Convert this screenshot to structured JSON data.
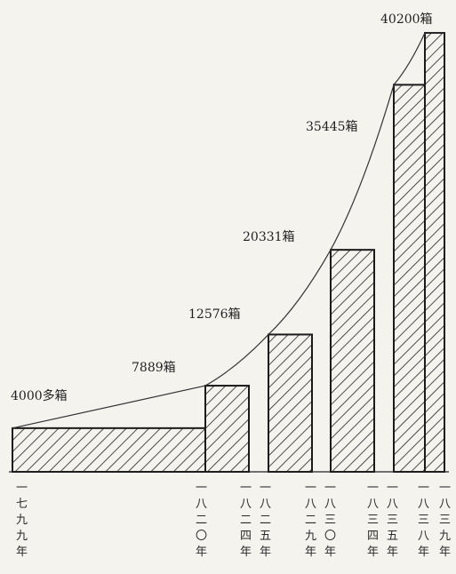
{
  "chart_data": {
    "type": "bar",
    "title": "",
    "xlabel": "",
    "ylabel": "",
    "categories": [
      {
        "label": "一七九九年",
        "chars": [
          "一",
          "七",
          "九",
          "九",
          "年"
        ]
      },
      {
        "label": "一八二〇年",
        "chars": [
          "一",
          "八",
          "二",
          "〇",
          "年"
        ]
      },
      {
        "label": "一八二四年",
        "chars": [
          "一",
          "八",
          "二",
          "四",
          "年"
        ]
      },
      {
        "label": "一八二五年",
        "chars": [
          "一",
          "八",
          "二",
          "五",
          "年"
        ]
      },
      {
        "label": "一八二九年",
        "chars": [
          "一",
          "八",
          "二",
          "九",
          "年"
        ]
      },
      {
        "label": "一八三〇年",
        "chars": [
          "一",
          "八",
          "三",
          "〇",
          "年"
        ]
      },
      {
        "label": "一八三四年",
        "chars": [
          "一",
          "八",
          "三",
          "四",
          "年"
        ]
      },
      {
        "label": "一八三五年",
        "chars": [
          "一",
          "八",
          "三",
          "五",
          "年"
        ]
      },
      {
        "label": "一八三八年",
        "chars": [
          "一",
          "八",
          "三",
          "八",
          "年"
        ]
      },
      {
        "label": "一八三九年",
        "chars": [
          "一",
          "八",
          "三",
          "九",
          "年"
        ]
      }
    ],
    "bars": [
      {
        "from": 0,
        "to": 1,
        "value": 4000,
        "label": "4000多箱"
      },
      {
        "from": 1,
        "to": 2,
        "value": 7889,
        "label": "7889箱"
      },
      {
        "from": 3,
        "to": 4,
        "value": 12576,
        "label": "12576箱"
      },
      {
        "from": 5,
        "to": 6,
        "value": 20331,
        "label": "20331箱"
      },
      {
        "from": 7,
        "to": 8,
        "value": 35445,
        "label": "35445箱"
      },
      {
        "from": 8,
        "to": 9,
        "value": 40200,
        "label": "40200箱"
      }
    ],
    "ylim": [
      0,
      40200
    ],
    "grid": false,
    "legend": "none",
    "pattern": "diagonal-hatch",
    "trend_line": true
  }
}
